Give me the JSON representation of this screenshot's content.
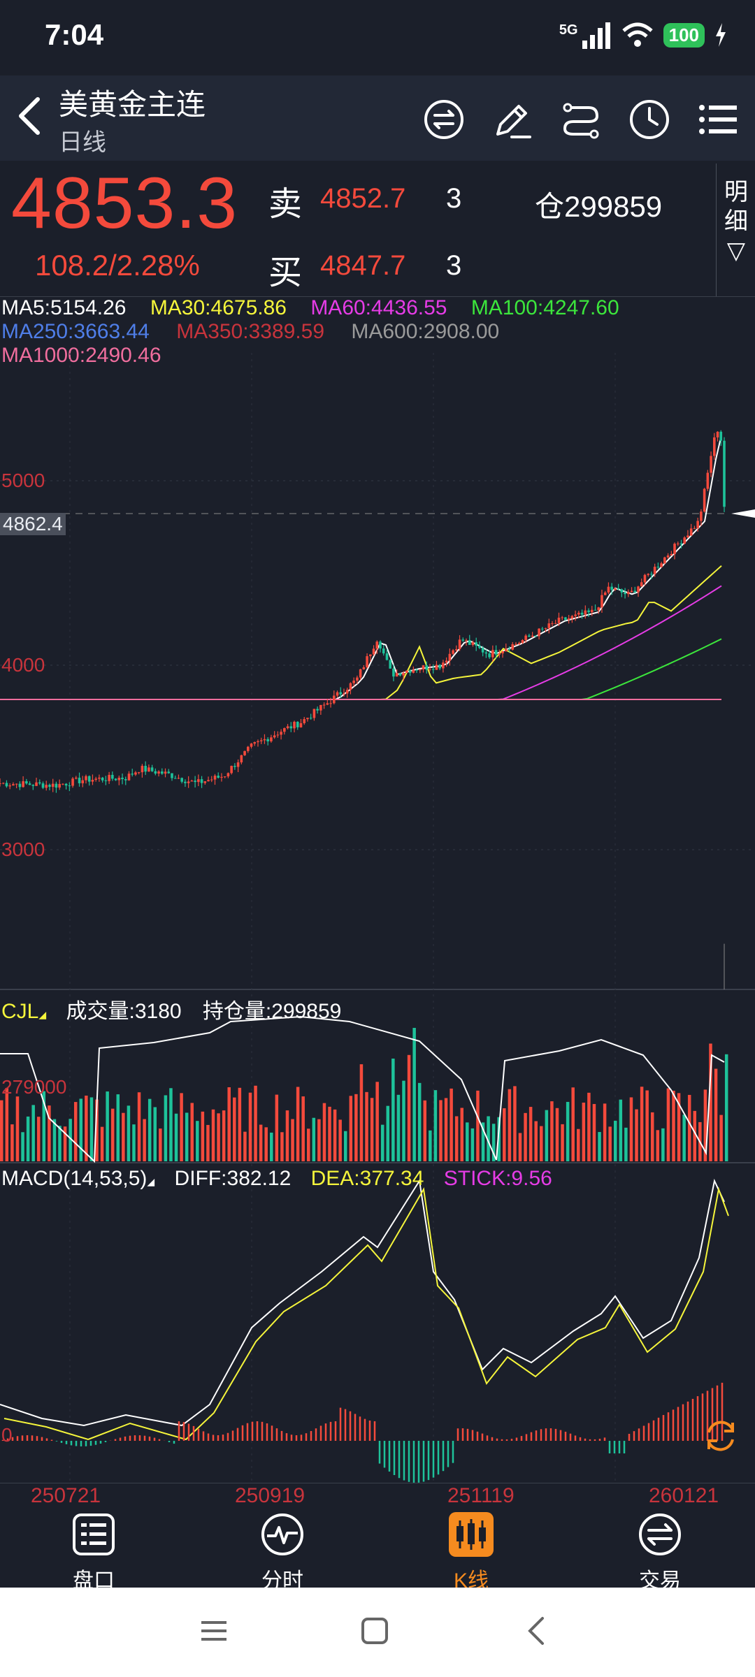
{
  "status": {
    "time": "7:04",
    "network": "5G",
    "battery": "100"
  },
  "header": {
    "title": "美黄金主连",
    "subtitle": "日线"
  },
  "quote": {
    "last_price": "4853.3",
    "change": "108.2/2.28%",
    "sell_label": "卖",
    "sell_price": "4852.7",
    "sell_qty": "3",
    "buy_label": "买",
    "buy_price": "4847.7",
    "buy_qty": "3",
    "oi_label": "仓",
    "oi_value": "299859",
    "detail_top": "明",
    "detail_bottom": "细",
    "detail_arrow": "▽"
  },
  "ma_legend": [
    {
      "text": "MA5:5154.26",
      "color": "#ffffff"
    },
    {
      "text": "MA30:4675.86",
      "color": "#f5f53b"
    },
    {
      "text": "MA60:4436.55",
      "color": "#e63ce6"
    },
    {
      "text": "MA100:4247.60",
      "color": "#3ce63c"
    },
    {
      "text": "MA250:3663.44",
      "color": "#4f7ee8"
    },
    {
      "text": "MA350:3389.59",
      "color": "#c8343c"
    },
    {
      "text": "MA600:2908.00",
      "color": "#9a9a9a"
    },
    {
      "text": "MA1000:2490.46",
      "color": "#f06e9e"
    }
  ],
  "price_axis": {
    "labels": [
      "5000",
      "4000",
      "3000"
    ],
    "cursor_label": "4862.4"
  },
  "volume_panel": {
    "name": "CJL",
    "volume_label": "成交量:3180",
    "oi_label": "持仓量:299859",
    "axis_label": "279000"
  },
  "macd_panel": {
    "name": "MACD(14,53,5)",
    "diff": "DIFF:382.12",
    "dea": "DEA:377.34",
    "stick": "STICK:9.56",
    "zero_label": "0"
  },
  "x_axis": {
    "labels": [
      "250721",
      "250919",
      "251119",
      "260121"
    ]
  },
  "bottom_nav": [
    {
      "label": "盘口",
      "icon": "orderbook-icon",
      "active": false
    },
    {
      "label": "分时",
      "icon": "intraday-icon",
      "active": false
    },
    {
      "label": "K线",
      "icon": "candlestick-icon",
      "active": true
    },
    {
      "label": "交易",
      "icon": "trade-icon",
      "active": false
    }
  ],
  "colors": {
    "up": "#f44a3c",
    "down": "#1ec29a",
    "active": "#f68b1f",
    "bg": "#1b1f2a"
  }
}
